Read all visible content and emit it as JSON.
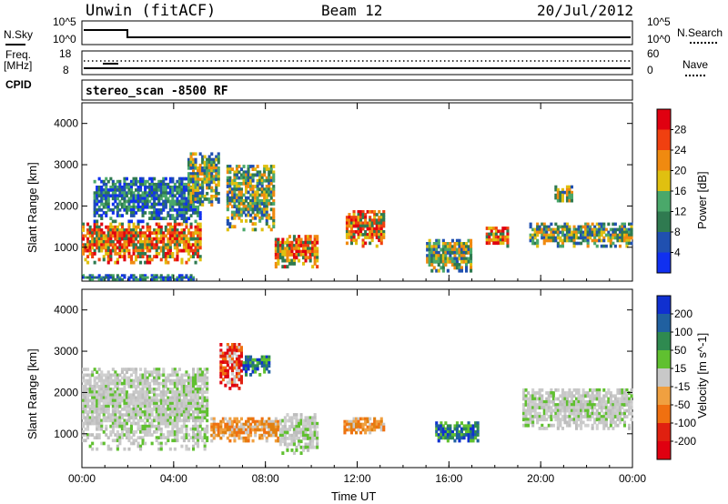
{
  "header": {
    "station": "Unwin (fitACF)",
    "beam": "Beam 12",
    "date": "20/Jul/2012"
  },
  "top_panels": {
    "nsky_label": "N.Sky",
    "nsky_top": "10^5",
    "nsky_bottom": "10^0",
    "nsearch_label": "N.Search",
    "nsearch_top": "10^5",
    "nsearch_bottom": "10^0",
    "freq_label": "Freq.",
    "freq_unit": "[MHz]",
    "freq_top": "18",
    "freq_bottom": "8",
    "nave_label": "Nave",
    "nave_top": "60",
    "nave_bottom": "0",
    "cpid_label": "CPID",
    "cpid_value": "stereo_scan -8500 RF"
  },
  "chart_data": [
    {
      "type": "heatmap",
      "panel": "power",
      "ylabel": "Slant Range [km]",
      "y_ticks": [
        "1000",
        "2000",
        "3000",
        "4000"
      ],
      "ylim": [
        180,
        4500
      ],
      "x_ticks": [
        "00:00",
        "04:00",
        "08:00",
        "12:00",
        "16:00",
        "20:00",
        "00:00"
      ],
      "xlim_hours": [
        0,
        24
      ],
      "colorbar": {
        "label": "Power [dB]",
        "ticks": [
          "4",
          "8",
          "12",
          "16",
          "20",
          "24",
          "28"
        ],
        "colors": [
          "#1030f0",
          "#2050b0",
          "#2f7a50",
          "#4aa86a",
          "#e0c010",
          "#f08a10",
          "#f04010",
          "#e00010"
        ]
      },
      "echo_regions": [
        {
          "t0": 0.0,
          "t1": 4.9,
          "r0": 200,
          "r1": 350,
          "level": "low"
        },
        {
          "t0": 0.0,
          "t1": 5.2,
          "r0": 600,
          "r1": 1600,
          "level": "high"
        },
        {
          "t0": 0.5,
          "t1": 5.2,
          "r0": 1600,
          "r1": 2700,
          "level": "low"
        },
        {
          "t0": 4.6,
          "t1": 6.0,
          "r0": 2000,
          "r1": 3300,
          "level": "mid"
        },
        {
          "t0": 6.3,
          "t1": 8.4,
          "r0": 1400,
          "r1": 3000,
          "level": "mid"
        },
        {
          "t0": 8.4,
          "t1": 10.3,
          "r0": 500,
          "r1": 1300,
          "level": "high"
        },
        {
          "t0": 11.5,
          "t1": 13.2,
          "r0": 1000,
          "r1": 1900,
          "level": "high"
        },
        {
          "t0": 15.0,
          "t1": 17.0,
          "r0": 400,
          "r1": 1200,
          "level": "mid"
        },
        {
          "t0": 17.6,
          "t1": 18.6,
          "r0": 1000,
          "r1": 1500,
          "level": "high"
        },
        {
          "t0": 19.5,
          "t1": 24.0,
          "r0": 1000,
          "r1": 1600,
          "level": "mid"
        },
        {
          "t0": 20.6,
          "t1": 21.4,
          "r0": 2100,
          "r1": 2500,
          "level": "mid"
        }
      ]
    },
    {
      "type": "heatmap",
      "panel": "velocity",
      "ylabel": "Slant Range [km]",
      "y_ticks": [
        "1000",
        "2000",
        "3000",
        "4000"
      ],
      "ylim": [
        180,
        4500
      ],
      "x_ticks": [
        "00:00",
        "04:00",
        "08:00",
        "12:00",
        "16:00",
        "20:00",
        "00:00"
      ],
      "xlabel": "Time UT",
      "xlim_hours": [
        0,
        24
      ],
      "colorbar": {
        "label": "Velocity [m s^-1]",
        "ticks": [
          "200",
          "100",
          "50",
          "15",
          "-15",
          "-50",
          "-100",
          "-200"
        ],
        "colors": [
          "#1030d0",
          "#2060a0",
          "#2f8a50",
          "#60c030",
          "#c8c8c8",
          "#f0a040",
          "#f07010",
          "#e02010",
          "#e00010"
        ]
      },
      "echo_regions": [
        {
          "t0": 0.0,
          "t1": 5.5,
          "r0": 600,
          "r1": 2600,
          "level": "ground"
        },
        {
          "t0": 6.0,
          "t1": 7.0,
          "r0": 2000,
          "r1": 3200,
          "level": "neg-high"
        },
        {
          "t0": 7.0,
          "t1": 8.2,
          "r0": 2400,
          "r1": 2900,
          "level": "pos"
        },
        {
          "t0": 5.6,
          "t1": 8.6,
          "r0": 800,
          "r1": 1400,
          "level": "neg-mid"
        },
        {
          "t0": 8.6,
          "t1": 10.3,
          "r0": 500,
          "r1": 1500,
          "level": "ground"
        },
        {
          "t0": 11.4,
          "t1": 13.2,
          "r0": 1000,
          "r1": 1400,
          "level": "neg-mid"
        },
        {
          "t0": 15.4,
          "t1": 17.3,
          "r0": 800,
          "r1": 1300,
          "level": "pos"
        },
        {
          "t0": 19.2,
          "t1": 24.0,
          "r0": 1100,
          "r1": 2100,
          "level": "ground"
        }
      ]
    }
  ],
  "colors": {
    "axis": "#000000",
    "background": "#ffffff"
  }
}
